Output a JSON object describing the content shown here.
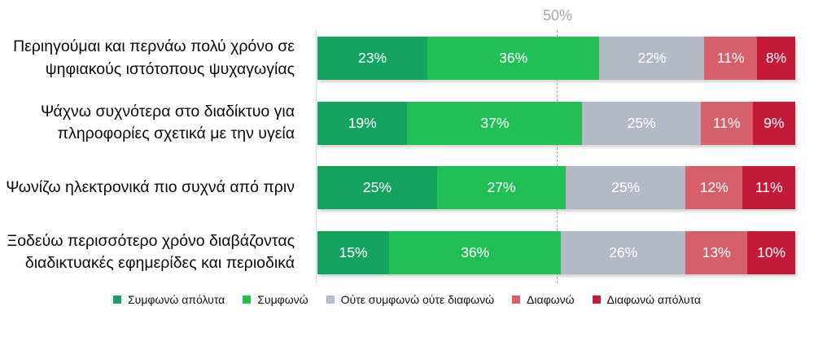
{
  "chart_data": {
    "type": "bar",
    "subtype": "horizontal-stacked",
    "value_suffix": "%",
    "xlim": [
      0,
      100
    ],
    "grid": "single dashed vertical gridline at 50%",
    "legend_position": "bottom",
    "axis": {
      "gridline_label": "50%",
      "gridline_value": 50
    },
    "categories": [
      "Περιηγούμαι και περνάω πολύ χρόνο σε ψηφιακούς ιστότοπους ψυχαγωγίας",
      "Ψάχνω συχνότερα στο διαδίκτυο για πληροφορίες σχετικά με την υγεία",
      "Ψωνίζω ηλεκτρονικά πιο συχνά από πριν",
      "Ξοδεύω περισσότερο χρόνο διαβάζοντας διαδικτυακές εφημερίδες και περιοδικά"
    ],
    "series": [
      {
        "name": "Συμφωνώ απόλυτα",
        "color": "#16a35f",
        "values": [
          23,
          19,
          25,
          15
        ]
      },
      {
        "name": "Συμφωνώ",
        "color": "#21bf55",
        "values": [
          36,
          37,
          27,
          36
        ]
      },
      {
        "name": "Ούτε  συμφωνώ  ούτε διαφωνώ",
        "color": "#b4b9c6",
        "values": [
          22,
          25,
          25,
          26
        ]
      },
      {
        "name": "Διαφωνώ",
        "color": "#d5606c",
        "values": [
          11,
          11,
          12,
          13
        ]
      },
      {
        "name": "Διαφωνώ απόλυτα",
        "color": "#c41a3a",
        "values": [
          8,
          9,
          11,
          10
        ]
      }
    ]
  },
  "colors": {
    "gridline": "#a6a6a6",
    "axis_line": "#d9d9d9",
    "category_text": "#0a0a0a",
    "value_label_text": "#ffffff",
    "background": "#ffffff"
  }
}
